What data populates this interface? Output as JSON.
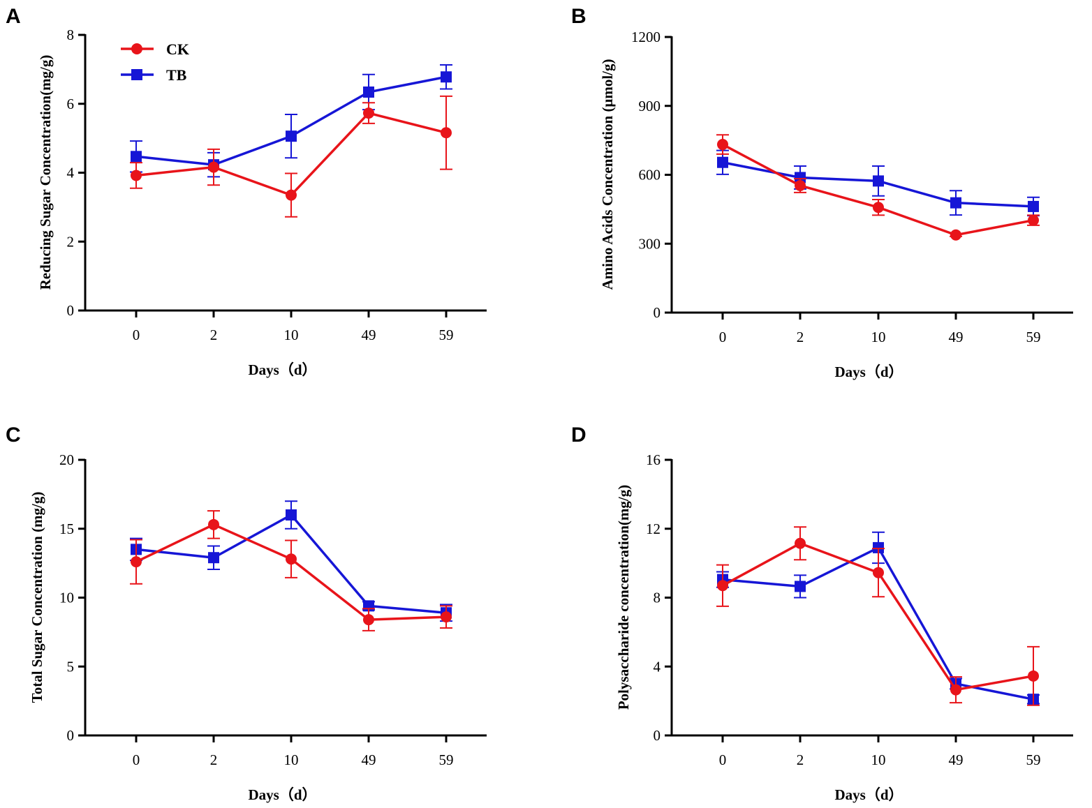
{
  "legend": [
    {
      "name": "CK",
      "color": "#e8141a",
      "marker": "circle"
    },
    {
      "name": "TB",
      "color": "#1616d6",
      "marker": "square"
    }
  ],
  "chart_data": [
    {
      "panel": "A",
      "type": "line",
      "title": "",
      "xlabel": "Days（d）",
      "ylabel": "Reducing Sugar Concentration(mg/g)",
      "categories": [
        "0",
        "2",
        "10",
        "49",
        "59"
      ],
      "ylim": [
        0,
        8
      ],
      "yticks": [
        0,
        2,
        4,
        6,
        8
      ],
      "ytick_labels": [
        "0",
        "2",
        "4",
        "6",
        "8"
      ],
      "legend_position": "top-left",
      "series": [
        {
          "name": "CK",
          "values": [
            3.92,
            4.16,
            3.35,
            5.73,
            5.16
          ],
          "errors": [
            0.37,
            0.52,
            0.63,
            0.3,
            1.06
          ]
        },
        {
          "name": "TB",
          "values": [
            4.47,
            4.23,
            5.06,
            6.34,
            6.78
          ],
          "errors": [
            0.45,
            0.35,
            0.63,
            0.51,
            0.35
          ]
        }
      ]
    },
    {
      "panel": "B",
      "type": "line",
      "title": "",
      "xlabel": "Days（d）",
      "ylabel": "Amino Acids Concentration (μmol/g)",
      "categories": [
        "0",
        "2",
        "10",
        "49",
        "59"
      ],
      "ylim": [
        0,
        1200
      ],
      "yticks": [
        0,
        300,
        600,
        900,
        1200
      ],
      "ytick_labels": [
        "0",
        "300",
        "600",
        "900",
        "1200"
      ],
      "series": [
        {
          "name": "CK",
          "values": [
            732,
            553,
            458,
            338,
            402
          ],
          "errors": [
            42,
            30,
            34,
            6,
            22
          ]
        },
        {
          "name": "TB",
          "values": [
            654,
            588,
            573,
            478,
            462
          ],
          "errors": [
            52,
            50,
            65,
            53,
            40
          ]
        }
      ]
    },
    {
      "panel": "C",
      "type": "line",
      "title": "",
      "xlabel": "Days（d）",
      "ylabel": "Total Sugar Concentration (mg/g)",
      "categories": [
        "0",
        "2",
        "10",
        "49",
        "59"
      ],
      "ylim": [
        0,
        20
      ],
      "yticks": [
        0,
        5,
        10,
        15,
        20
      ],
      "ytick_labels": [
        "0",
        "5",
        "10",
        "15",
        "20"
      ],
      "series": [
        {
          "name": "CK",
          "values": [
            12.6,
            15.3,
            12.8,
            8.4,
            8.6
          ],
          "errors": [
            1.6,
            1.0,
            1.35,
            0.8,
            0.8
          ]
        },
        {
          "name": "TB",
          "values": [
            13.5,
            12.9,
            16.0,
            9.4,
            8.9
          ],
          "errors": [
            0.8,
            0.85,
            1.0,
            0.3,
            0.6
          ]
        }
      ]
    },
    {
      "panel": "D",
      "type": "line",
      "title": "",
      "xlabel": "Days（d）",
      "ylabel": "Polysaccharide concentration(mg/g)",
      "categories": [
        "0",
        "2",
        "10",
        "49",
        "59"
      ],
      "ylim": [
        0,
        16
      ],
      "yticks": [
        0,
        4,
        8,
        12,
        16
      ],
      "ytick_labels": [
        "0",
        "4",
        "8",
        "12",
        "16"
      ],
      "series": [
        {
          "name": "CK",
          "values": [
            8.7,
            11.15,
            9.45,
            2.65,
            3.45
          ],
          "errors": [
            1.2,
            0.95,
            1.4,
            0.75,
            1.7
          ]
        },
        {
          "name": "TB",
          "values": [
            9.05,
            8.65,
            10.9,
            3.0,
            2.1
          ],
          "errors": [
            0.45,
            0.65,
            0.9,
            0.3,
            0.25
          ]
        }
      ]
    }
  ]
}
